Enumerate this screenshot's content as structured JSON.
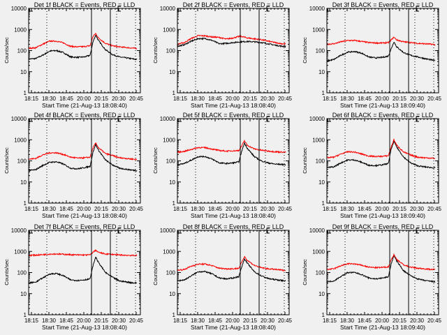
{
  "window": {
    "background": "#f0f0f0"
  },
  "chart_data": {
    "type": "line",
    "layout": "3x3 grid",
    "shared": {
      "ylabel": "Counts/sec",
      "yscale": "log",
      "ylim": [
        1,
        10000
      ],
      "yticks": [
        "1",
        "10",
        "100",
        "1000",
        "10000"
      ],
      "xticks": [
        "18:15",
        "18:30",
        "18:45",
        "20:00",
        "20:15",
        "20:30",
        "20:45"
      ],
      "xlim_minutes_from_1813": [
        0,
        155
      ],
      "series_names": [
        "Events",
        "LLD"
      ],
      "series_colors": {
        "Events": "#000000",
        "LLD": "#ff0000"
      },
      "solid_vlines_minutes": [
        90,
        117
      ],
      "dotted_vlines_minutes": [
        26,
        126,
        153
      ],
      "time_note": "x-axis labels as printed (hh:mm)"
    },
    "panels": [
      {
        "title": "Det 1f BLACK = Events, RED = LLD",
        "xlabel": "Start Time (21-Aug-13 18:08:40)",
        "x": [
          0,
          10,
          20,
          30,
          40,
          50,
          60,
          70,
          80,
          88,
          92,
          96,
          100,
          110,
          120,
          130,
          140,
          150,
          155
        ],
        "series": [
          {
            "name": "Events",
            "values": [
              40,
              42,
              60,
              95,
              100,
              80,
              50,
              48,
              50,
              60,
              250,
              550,
              300,
              110,
              65,
              50,
              45,
              40,
              38
            ]
          },
          {
            "name": "LLD",
            "values": [
              130,
              135,
              200,
              280,
              280,
              230,
              160,
              150,
              155,
              170,
              450,
              650,
              400,
              220,
              170,
              150,
              140,
              130,
              125
            ]
          }
        ]
      },
      {
        "title": "Det 2f BLACK = Events, RED = LLD",
        "xlabel": "Start Time (21-Aug-13 18:08:40)",
        "x": [
          0,
          10,
          20,
          30,
          40,
          50,
          60,
          70,
          80,
          90,
          100,
          110,
          120,
          130,
          140,
          150,
          155
        ],
        "series": [
          {
            "name": "Events",
            "values": [
              160,
              190,
              280,
              370,
              370,
              300,
              210,
              220,
              240,
              260,
              270,
              260,
              240,
              210,
              180,
              160,
              160
            ]
          },
          {
            "name": "LLD",
            "values": [
              200,
              240,
              380,
              510,
              500,
              440,
              420,
              350,
              400,
              480,
              400,
              360,
              330,
              280,
              240,
              210,
              210
            ]
          }
        ]
      },
      {
        "title": "Det 3f BLACK = Events, RED = LLD",
        "xlabel": "Start Time (21-Aug-13 18:09:40)",
        "x": [
          0,
          10,
          20,
          30,
          40,
          50,
          60,
          70,
          80,
          88,
          92,
          96,
          100,
          110,
          120,
          130,
          140,
          150,
          155
        ],
        "series": [
          {
            "name": "Events",
            "values": [
              32,
              38,
              60,
              85,
              90,
              75,
              50,
              45,
              48,
              55,
              120,
              260,
              150,
              80,
              60,
              50,
              42,
              36,
              33
            ]
          },
          {
            "name": "LLD",
            "values": [
              200,
              210,
              260,
              300,
              300,
              270,
              240,
              230,
              230,
              240,
              320,
              430,
              320,
              260,
              240,
              220,
              210,
              200,
              190
            ]
          }
        ]
      },
      {
        "title": "Det 4f BLACK = Events, RED = LLD",
        "xlabel": "Start Time (21-Aug-13 18:08:40)",
        "x": [
          0,
          10,
          20,
          30,
          40,
          50,
          60,
          70,
          80,
          88,
          92,
          96,
          100,
          110,
          120,
          130,
          140,
          150,
          155
        ],
        "series": [
          {
            "name": "Events",
            "values": [
              35,
              38,
              60,
              85,
              90,
              70,
              45,
              42,
              48,
              55,
              250,
              600,
              320,
              110,
              65,
              45,
              40,
              36,
              35
            ]
          },
          {
            "name": "LLD",
            "values": [
              120,
              130,
              190,
              240,
              240,
              200,
              150,
              135,
              140,
              150,
              400,
              700,
              420,
              220,
              180,
              140,
              130,
              120,
              115
            ]
          }
        ]
      },
      {
        "title": "Det 5f BLACK = Events, RED = LLD",
        "xlabel": "Start Time (21-Aug-13 18:08:40)",
        "x": [
          0,
          10,
          20,
          30,
          40,
          50,
          60,
          70,
          80,
          88,
          92,
          96,
          100,
          110,
          120,
          130,
          140,
          150,
          155
        ],
        "series": [
          {
            "name": "Events",
            "values": [
              65,
              75,
              110,
              160,
              160,
              120,
              80,
              75,
              80,
              90,
              280,
              700,
              400,
              160,
              100,
              80,
              70,
              68,
              65
            ]
          },
          {
            "name": "LLD",
            "values": [
              260,
              280,
              350,
              430,
              420,
              360,
              310,
              290,
              300,
              310,
              500,
              900,
              550,
              370,
              320,
              290,
              270,
              260,
              255
            ]
          }
        ]
      },
      {
        "title": "Det 6f BLACK = Events, RED = LLD",
        "xlabel": "Start Time (21-Aug-13 18:09:40)",
        "x": [
          0,
          10,
          20,
          30,
          40,
          50,
          60,
          70,
          80,
          88,
          92,
          96,
          100,
          110,
          120,
          130,
          140,
          150,
          155
        ],
        "series": [
          {
            "name": "Events",
            "values": [
              48,
              52,
              80,
              110,
              110,
              85,
              62,
              60,
              65,
              75,
              350,
              850,
              450,
              150,
              80,
              58,
              52,
              48,
              47
            ]
          },
          {
            "name": "LLD",
            "values": [
              140,
              150,
              210,
              270,
              260,
              210,
              170,
              160,
              165,
              175,
              450,
              1000,
              550,
              260,
              190,
              150,
              140,
              135,
              130
            ]
          }
        ]
      },
      {
        "title": "Det 7f BLACK = Events, RED = LLD",
        "xlabel": "Start Time (21-Aug-13 18:08:40)",
        "x": [
          0,
          10,
          20,
          30,
          40,
          50,
          60,
          70,
          80,
          88,
          92,
          96,
          100,
          110,
          120,
          130,
          140,
          150,
          155
        ],
        "series": [
          {
            "name": "Events",
            "values": [
              32,
              35,
              55,
              85,
              90,
              70,
              45,
              42,
              45,
              50,
              200,
              550,
              300,
              100,
              60,
              40,
              36,
              32,
              33
            ]
          },
          {
            "name": "LLD",
            "values": [
              650,
              670,
              700,
              750,
              760,
              730,
              700,
              680,
              680,
              690,
              900,
              1150,
              900,
              760,
              720,
              680,
              660,
              640,
              650
            ]
          }
        ]
      },
      {
        "title": "Det 8f BLACK = Events, RED = LLD",
        "xlabel": "Start Time (21-Aug-13 18:08:40)",
        "x": [
          0,
          10,
          20,
          30,
          40,
          50,
          60,
          70,
          80,
          88,
          92,
          96,
          100,
          110,
          120,
          130,
          140,
          150,
          155
        ],
        "series": [
          {
            "name": "Events",
            "values": [
              40,
              45,
              70,
              110,
              110,
              85,
              55,
              50,
              55,
              65,
              180,
              450,
              280,
              110,
              70,
              52,
              46,
              42,
              40
            ]
          },
          {
            "name": "LLD",
            "values": [
              130,
              140,
              200,
              250,
              250,
              210,
              160,
              150,
              150,
              160,
              300,
              580,
              380,
              220,
              170,
              150,
              140,
              130,
              125
            ]
          }
        ]
      },
      {
        "title": "Det 9f BLACK = Events, RED = LLD",
        "xlabel": "Start Time (21-Aug-13 18:09:40)",
        "x": [
          0,
          10,
          20,
          30,
          40,
          50,
          60,
          70,
          80,
          88,
          92,
          96,
          100,
          110,
          120,
          130,
          140,
          150,
          155
        ],
        "series": [
          {
            "name": "Events",
            "values": [
              36,
              40,
              65,
              100,
              100,
              80,
              55,
              50,
              55,
              62,
              250,
              650,
              350,
              120,
              70,
              50,
              42,
              38,
              36
            ]
          },
          {
            "name": "LLD",
            "values": [
              140,
              150,
              210,
              260,
              255,
              220,
              180,
              170,
              175,
              185,
              400,
              700,
              420,
              230,
              180,
              160,
              150,
              140,
              138
            ]
          }
        ]
      }
    ]
  }
}
